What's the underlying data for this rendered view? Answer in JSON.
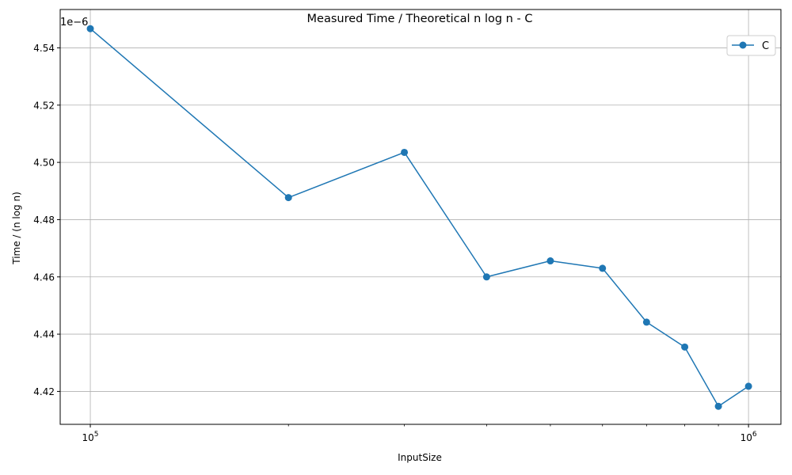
{
  "chart_data": {
    "type": "line",
    "title": "Measured Time / Theoretical n log n - C",
    "xlabel": "InputSize",
    "ylabel": "Time / (n log n)",
    "x_scale": "log",
    "y_offset_text": "1e−6",
    "xlim": [
      90000,
      1120000
    ],
    "ylim": [
      4.4085e-06,
      4.5534e-06
    ],
    "x_ticks": [
      {
        "value": 100000,
        "base": "10",
        "exp": "5"
      },
      {
        "value": 1000000,
        "base": "10",
        "exp": "6"
      }
    ],
    "x_minor_ticks": [
      200000,
      300000,
      400000,
      500000,
      600000,
      700000,
      800000,
      900000
    ],
    "y_ticks": [
      {
        "value": 4.42e-06,
        "label": "4.42"
      },
      {
        "value": 4.44e-06,
        "label": "4.44"
      },
      {
        "value": 4.46e-06,
        "label": "4.46"
      },
      {
        "value": 4.48e-06,
        "label": "4.48"
      },
      {
        "value": 4.5e-06,
        "label": "4.50"
      },
      {
        "value": 4.52e-06,
        "label": "4.52"
      },
      {
        "value": 4.54e-06,
        "label": "4.54"
      }
    ],
    "grid": true,
    "legend_position": "top-right",
    "series": [
      {
        "name": "C",
        "color": "#1f77b4",
        "marker": "circle",
        "x": [
          100000,
          200000,
          300000,
          400000,
          500000,
          600000,
          700000,
          800000,
          900000,
          1000000
        ],
        "y": [
          4.5467e-06,
          4.4877e-06,
          4.5035e-06,
          4.46e-06,
          4.4656e-06,
          4.463e-06,
          4.4442e-06,
          4.4355e-06,
          4.4148e-06,
          4.4218e-06
        ]
      }
    ]
  }
}
